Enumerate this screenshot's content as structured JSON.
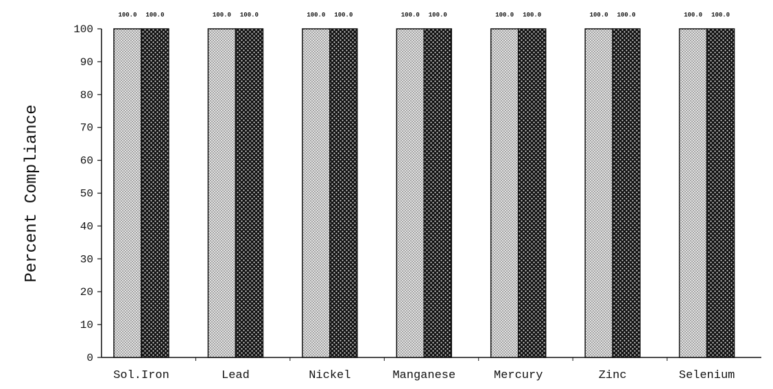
{
  "chart_data": {
    "type": "bar",
    "title": "",
    "xlabel": "",
    "ylabel": "Percent Compliance",
    "ylim": [
      0,
      100
    ],
    "yticks": [
      0,
      10,
      20,
      30,
      40,
      50,
      60,
      70,
      80,
      90,
      100
    ],
    "grid": false,
    "categories": [
      "Sol.Iron",
      "Lead",
      "Nickel",
      "Manganese",
      "Mercury",
      "Zinc",
      "Selenium"
    ],
    "series": [
      {
        "values": [
          100.0,
          100.0,
          100.0,
          100.0,
          100.0,
          100.0,
          100.0
        ],
        "pattern": "light-stipple",
        "color": "#c8c8c8"
      },
      {
        "values": [
          100.0,
          100.0,
          100.0,
          100.0,
          100.0,
          100.0,
          100.0
        ],
        "pattern": "dark-dotted",
        "color": "#1a1a1a"
      }
    ],
    "data_labels": [
      [
        "100.0",
        "100.0",
        "100.0",
        "100.0",
        "100.0",
        "100.0",
        "100.0"
      ],
      [
        "100.0",
        "100.0",
        "100.0",
        "100.0",
        "100.0",
        "100.0",
        "100.0"
      ]
    ]
  }
}
